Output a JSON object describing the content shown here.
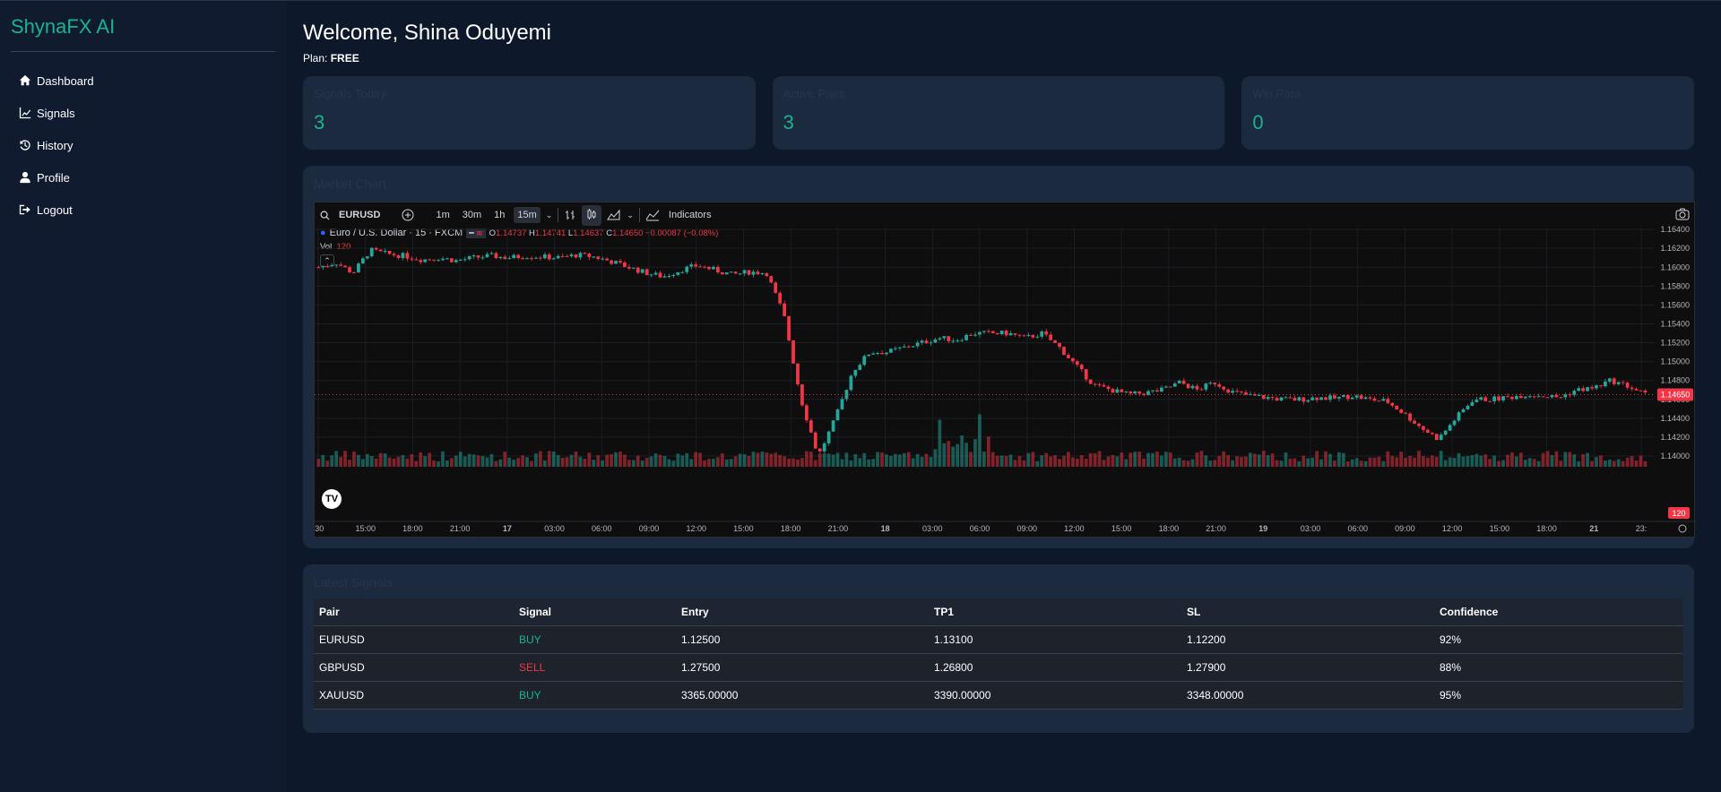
{
  "brand": "ShynaFX AI",
  "nav": [
    {
      "label": "Dashboard",
      "icon": "home-icon"
    },
    {
      "label": "Signals",
      "icon": "chart-line-icon"
    },
    {
      "label": "History",
      "icon": "history-icon"
    },
    {
      "label": "Profile",
      "icon": "user-icon"
    },
    {
      "label": "Logout",
      "icon": "logout-icon"
    }
  ],
  "welcome": "Welcome, Shina Oduyemi",
  "plan_label": "Plan:",
  "plan_value": "FREE",
  "cards": [
    {
      "label": "Signals Today",
      "value": "3"
    },
    {
      "label": "Active Pairs",
      "value": "3"
    },
    {
      "label": "Win Rate",
      "value": "0"
    }
  ],
  "chart_panel_title": "Market Chart",
  "chart_toolbar": {
    "symbol": "EURUSD",
    "intervals": [
      "1m",
      "30m",
      "1h",
      "15m"
    ],
    "active_interval": "15m",
    "indicators": "Indicators"
  },
  "chart_legend": {
    "name": "Euro / U.S. Dollar · 15 · FXCM",
    "open": "1.14737",
    "high": "1.14741",
    "low": "1.14637",
    "close": "1.14650",
    "change": "−0.00087 (−0.08%)",
    "vol_label": "Vol",
    "vol_value": "120"
  },
  "chart_data": {
    "type": "candlestick",
    "symbol": "EURUSD",
    "interval": "15m",
    "y_ticks": [
      "1.16400",
      "1.16200",
      "1.16000",
      "1.15800",
      "1.15600",
      "1.15400",
      "1.15200",
      "1.15000",
      "1.14800",
      "1.14600",
      "1.14400",
      "1.14200",
      "1.14000"
    ],
    "ylim": [
      1.14,
      1.1642
    ],
    "x_ticks": [
      ":30",
      "15:00",
      "18:00",
      "21:00",
      "17",
      "03:00",
      "06:00",
      "09:00",
      "12:00",
      "15:00",
      "18:00",
      "21:00",
      "18",
      "03:00",
      "06:00",
      "09:00",
      "12:00",
      "15:00",
      "18:00",
      "21:00",
      "19",
      "03:00",
      "06:00",
      "09:00",
      "12:00",
      "15:00",
      "18:00",
      "21",
      "23:"
    ],
    "last_price": "1.14650",
    "last_volume": "120",
    "price_path": [
      1.16,
      1.1605,
      1.1594,
      1.1618,
      1.1614,
      1.1612,
      1.1608,
      1.161,
      1.1607,
      1.161,
      1.1612,
      1.161,
      1.1612,
      1.1611,
      1.161,
      1.1613,
      1.1611,
      1.1606,
      1.16,
      1.1594,
      1.159,
      1.1597,
      1.1602,
      1.1597,
      1.1592,
      1.1595,
      1.1594,
      1.155,
      1.146,
      1.14,
      1.144,
      1.149,
      1.151,
      1.151,
      1.1515,
      1.152,
      1.1525,
      1.1523,
      1.153,
      1.153,
      1.153,
      1.1525,
      1.153,
      1.1515,
      1.1495,
      1.1475,
      1.147,
      1.1465,
      1.1467,
      1.147,
      1.1478,
      1.147,
      1.1478,
      1.1468,
      1.1464,
      1.1462,
      1.146,
      1.146,
      1.1462,
      1.1461,
      1.1464,
      1.146,
      1.1458,
      1.1445,
      1.143,
      1.1418,
      1.144,
      1.146,
      1.146,
      1.1462,
      1.1465,
      1.1464,
      1.1462,
      1.147,
      1.1472,
      1.148,
      1.1474,
      1.1465
    ]
  },
  "signals_panel_title": "Latest Signals",
  "table": {
    "headers": [
      "Pair",
      "Signal",
      "Entry",
      "TP1",
      "SL",
      "Confidence"
    ],
    "rows": [
      {
        "pair": "EURUSD",
        "signal": "BUY",
        "entry": "1.12500",
        "tp1": "1.13100",
        "sl": "1.12200",
        "confidence": "92%"
      },
      {
        "pair": "GBPUSD",
        "signal": "SELL",
        "entry": "1.27500",
        "tp1": "1.26800",
        "sl": "1.27900",
        "confidence": "88%"
      },
      {
        "pair": "XAUUSD",
        "signal": "BUY",
        "entry": "3365.00000",
        "tp1": "3390.00000",
        "sl": "3348.00000",
        "confidence": "95%"
      }
    ]
  },
  "colors": {
    "accent": "#19b394",
    "sell": "#f23645",
    "up": "#26a69a"
  }
}
